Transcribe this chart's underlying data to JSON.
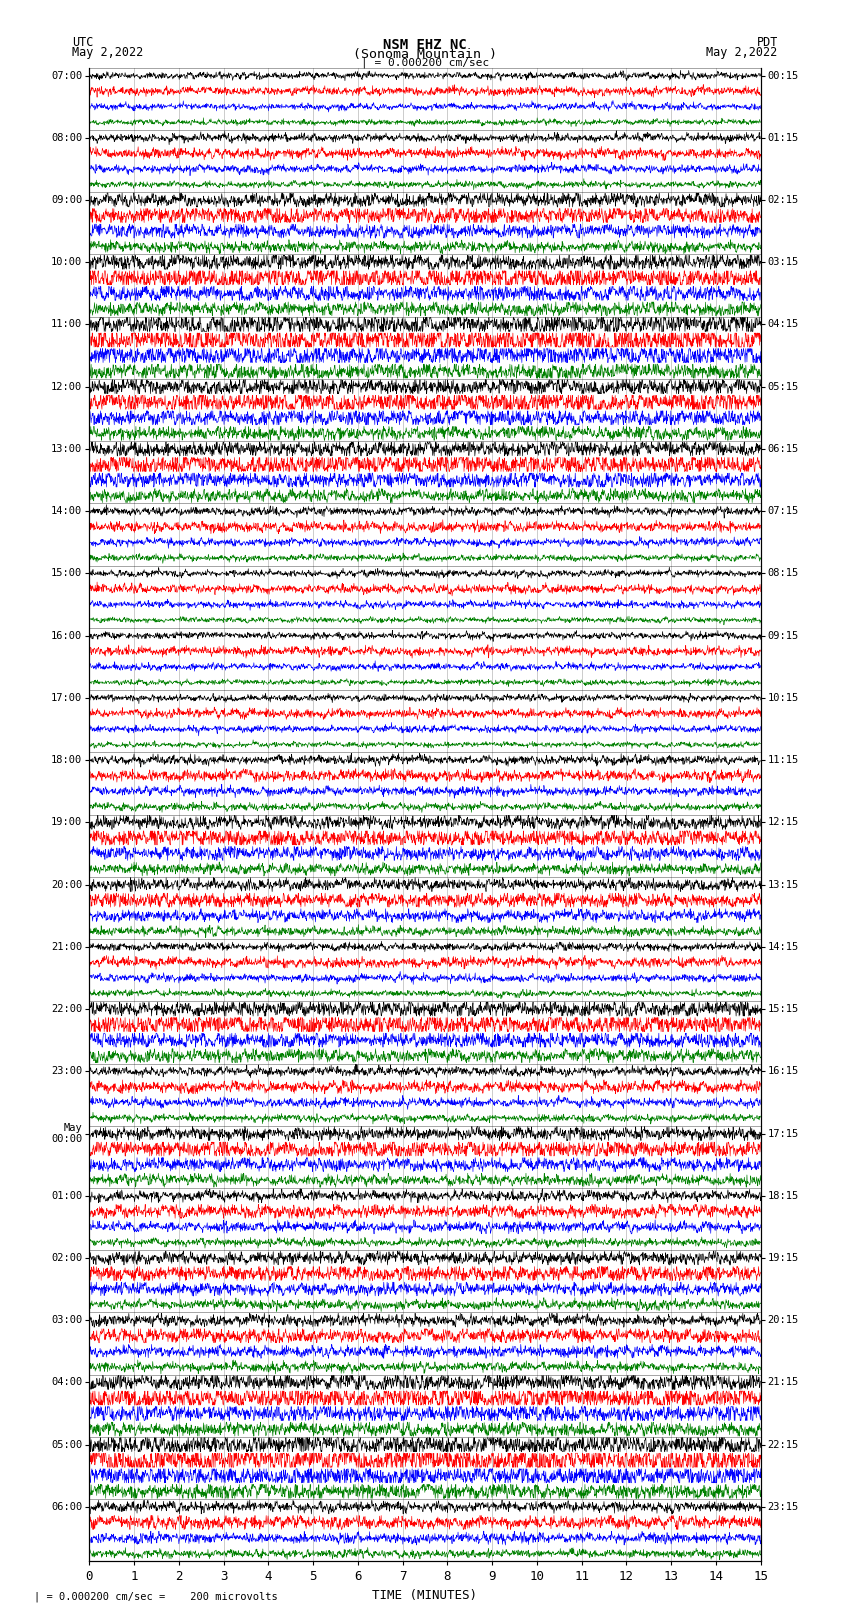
{
  "title_line1": "NSM EHZ NC",
  "title_line2": "(Sonoma Mountain )",
  "title_line3": "| = 0.000200 cm/sec",
  "left_header_line1": "UTC",
  "left_header_line2": "May 2,2022",
  "right_header_line1": "PDT",
  "right_header_line2": "May 2,2022",
  "xlabel": "TIME (MINUTES)",
  "footer": "| = 0.000200 cm/sec =    200 microvolts",
  "utc_times": [
    "07:00",
    "08:00",
    "09:00",
    "10:00",
    "11:00",
    "12:00",
    "13:00",
    "14:00",
    "15:00",
    "16:00",
    "17:00",
    "18:00",
    "19:00",
    "20:00",
    "21:00",
    "22:00",
    "23:00",
    "May\n00:00",
    "01:00",
    "02:00",
    "03:00",
    "04:00",
    "05:00",
    "06:00"
  ],
  "pdt_times": [
    "00:15",
    "01:15",
    "02:15",
    "03:15",
    "04:15",
    "05:15",
    "06:15",
    "07:15",
    "08:15",
    "09:15",
    "10:15",
    "11:15",
    "12:15",
    "13:15",
    "14:15",
    "15:15",
    "16:15",
    "17:15",
    "18:15",
    "19:15",
    "20:15",
    "21:15",
    "22:15",
    "23:15"
  ],
  "num_rows": 24,
  "traces_per_row": 4,
  "colors": [
    "black",
    "red",
    "blue",
    "green"
  ],
  "background_color": "white",
  "xmin": 0,
  "xmax": 15,
  "seed": 42,
  "fig_width": 8.5,
  "fig_height": 16.13,
  "dpi": 100
}
